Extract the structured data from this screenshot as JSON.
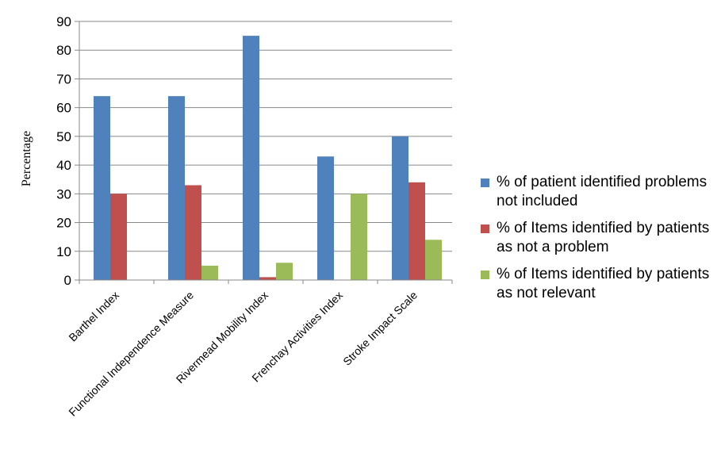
{
  "chart_data": {
    "type": "bar",
    "categories": [
      "Barthel Index",
      "Functional Independence Measure",
      "Rivermead Mobility Index",
      "Frenchay Activities Index",
      "Stroke Impact Scale"
    ],
    "series": [
      {
        "name": "% of patient identified problems not included",
        "color": "#4f81bd",
        "values": [
          64,
          64,
          85,
          43,
          50
        ]
      },
      {
        "name": "% of Items identified by patients as not a problem",
        "color": "#c0504d",
        "values": [
          30,
          33,
          1,
          0,
          34
        ]
      },
      {
        "name": "% of Items identified by patients as not relevant",
        "color": "#9bbb59",
        "values": [
          0,
          5,
          6,
          30,
          14
        ]
      }
    ],
    "ylabel": "Percentage",
    "ylim": [
      0,
      90
    ],
    "yticks": [
      0,
      10,
      20,
      30,
      40,
      50,
      60,
      70,
      80,
      90
    ],
    "grid": true,
    "legend_position": "right"
  }
}
